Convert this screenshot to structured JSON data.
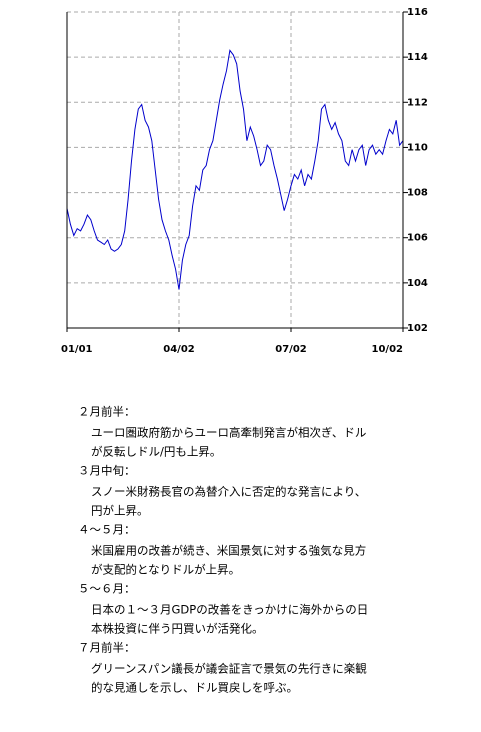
{
  "chart_data": {
    "type": "line",
    "categories": [
      "01/01",
      null,
      null,
      null,
      null,
      null,
      null,
      null,
      null,
      null,
      null,
      null,
      null,
      null,
      null,
      null,
      null,
      null,
      null,
      null,
      null,
      null,
      null,
      null,
      null,
      null,
      null,
      null,
      null,
      null,
      null,
      null,
      null,
      "04/02",
      null,
      null,
      null,
      null,
      null,
      null,
      null,
      null,
      null,
      null,
      null,
      null,
      null,
      null,
      null,
      null,
      null,
      null,
      null,
      null,
      null,
      null,
      null,
      null,
      null,
      null,
      null,
      null,
      null,
      null,
      null,
      null,
      "07/02",
      null,
      null,
      null,
      null,
      null,
      null,
      null,
      null,
      null,
      null,
      null,
      null,
      null,
      null,
      null,
      null,
      null,
      null,
      null,
      null,
      null,
      null,
      null,
      null,
      null,
      null,
      null,
      null,
      null,
      null,
      null,
      null,
      "10/02"
    ],
    "series": [
      {
        "color": "#0000cc",
        "values": [
          107.3,
          106.6,
          106.1,
          106.4,
          106.3,
          106.6,
          107.0,
          106.8,
          106.3,
          105.9,
          105.8,
          105.7,
          105.9,
          105.5,
          105.4,
          105.5,
          105.7,
          106.3,
          107.7,
          109.4,
          110.8,
          111.7,
          111.9,
          111.2,
          110.9,
          110.3,
          109.0,
          107.7,
          106.8,
          106.3,
          105.9,
          105.2,
          104.6,
          103.7,
          105.0,
          105.7,
          106.1,
          107.4,
          108.3,
          108.1,
          109.0,
          109.2,
          109.9,
          110.3,
          111.2,
          112.1,
          112.8,
          113.4,
          114.3,
          114.1,
          113.7,
          112.5,
          111.7,
          110.3,
          110.9,
          110.5,
          109.9,
          109.2,
          109.4,
          110.1,
          109.9,
          109.2,
          108.6,
          107.9,
          107.2,
          107.7,
          108.3,
          108.8,
          108.6,
          109.0,
          108.3,
          108.8,
          108.6,
          109.4,
          110.3,
          111.7,
          111.9,
          111.2,
          110.8,
          111.1,
          110.6,
          110.3,
          109.4,
          109.2,
          109.9,
          109.4,
          109.9,
          110.1,
          109.2,
          109.9,
          110.1,
          109.7,
          109.9,
          109.7,
          110.3,
          110.8,
          110.6,
          111.2,
          110.1,
          110.3
        ]
      }
    ],
    "ylim": [
      102,
      116
    ],
    "yticks": [
      102,
      104,
      106,
      108,
      110,
      112,
      114,
      116
    ],
    "grid": true
  },
  "notes": [
    {
      "heading": "２月前半：",
      "lines": [
        "ユーロ圏政府筋からユーロ高牽制発言が相次ぎ、ドル",
        "が反転しドル/円も上昇。"
      ]
    },
    {
      "heading": "３月中旬：",
      "lines": [
        "スノー米財務長官の為替介入に否定的な発言により、",
        "円が上昇。"
      ]
    },
    {
      "heading": "４～５月：",
      "lines": [
        "米国雇用の改善が続き、米国景気に対する強気な見方",
        "が支配的となりドルが上昇。"
      ]
    },
    {
      "heading": "５～６月：",
      "lines": [
        "日本の１～３月GDPの改善をきっかけに海外からの日",
        "本株投資に伴う円買いが活発化。"
      ]
    },
    {
      "heading": "７月前半：",
      "lines": [
        "グリーンスパン議長が議会証言で景気の先行きに楽観",
        "的な見通しを示し、ドル買戻しを呼ぶ。"
      ]
    }
  ]
}
